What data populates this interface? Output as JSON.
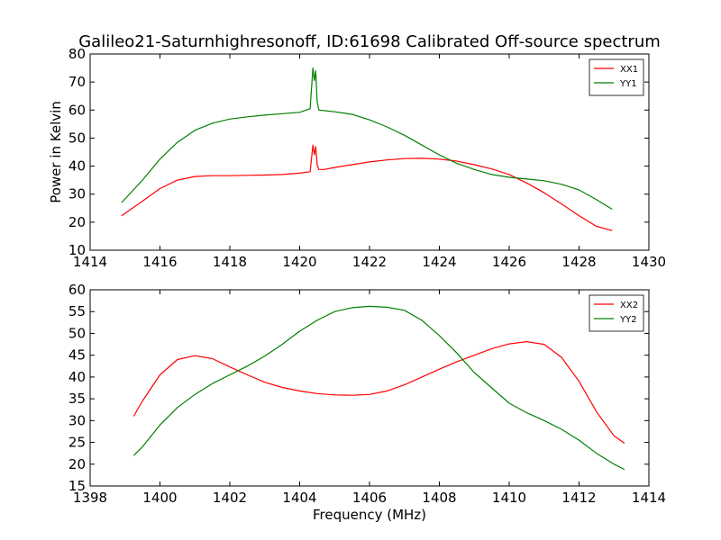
{
  "figure": {
    "title": "Galileo21-Saturnhighresonoff, ID:61698 Calibrated Off-source spectrum",
    "xlabel": "Frequency (MHz)",
    "ylabel": "Power in Kelvin"
  },
  "chart_data": [
    {
      "type": "line",
      "xlabel": "",
      "ylabel": "Power in Kelvin",
      "xlim": [
        1414,
        1430
      ],
      "ylim": [
        10,
        80
      ],
      "xticks": [
        "1414",
        "1416",
        "1418",
        "1420",
        "1422",
        "1424",
        "1426",
        "1428",
        "1430"
      ],
      "yticks": [
        "10",
        "20",
        "30",
        "40",
        "50",
        "60",
        "70",
        "80"
      ],
      "legend": "top-right",
      "series": [
        {
          "name": "XX1",
          "color": "#ff0000",
          "x": [
            1414.9,
            1415.5,
            1416.0,
            1416.5,
            1417.0,
            1417.5,
            1418.0,
            1418.5,
            1419.0,
            1419.5,
            1420.0,
            1420.3,
            1420.38,
            1420.42,
            1420.46,
            1420.5,
            1420.55,
            1420.7,
            1421.0,
            1421.5,
            1422.0,
            1422.5,
            1423.0,
            1423.5,
            1424.0,
            1424.5,
            1425.0,
            1425.5,
            1426.0,
            1426.5,
            1427.0,
            1427.5,
            1428.0,
            1428.5,
            1428.95
          ],
          "y": [
            22.3,
            27.5,
            32.0,
            35.0,
            36.3,
            36.6,
            36.6,
            36.7,
            36.8,
            37.0,
            37.5,
            38.0,
            47.5,
            44.0,
            47.0,
            40.5,
            38.8,
            38.8,
            39.5,
            40.5,
            41.5,
            42.2,
            42.7,
            42.8,
            42.5,
            41.8,
            40.5,
            39.0,
            37.0,
            34.0,
            30.5,
            26.5,
            22.3,
            18.5,
            17.0
          ]
        },
        {
          "name": "YY1",
          "color": "#008000",
          "x": [
            1414.9,
            1415.5,
            1416.0,
            1416.5,
            1417.0,
            1417.5,
            1418.0,
            1418.5,
            1419.0,
            1419.5,
            1420.0,
            1420.3,
            1420.38,
            1420.42,
            1420.46,
            1420.5,
            1420.55,
            1420.7,
            1421.0,
            1421.5,
            1422.0,
            1422.5,
            1423.0,
            1423.5,
            1424.0,
            1424.5,
            1425.0,
            1425.5,
            1426.0,
            1426.5,
            1427.0,
            1427.5,
            1428.0,
            1428.5,
            1428.95
          ],
          "y": [
            27.0,
            35.0,
            42.5,
            48.5,
            52.8,
            55.3,
            56.8,
            57.6,
            58.2,
            58.7,
            59.2,
            60.5,
            75.0,
            70.5,
            74.0,
            63.0,
            60.0,
            59.8,
            59.4,
            58.5,
            56.5,
            54.0,
            51.0,
            47.5,
            44.0,
            41.0,
            38.8,
            37.0,
            36.0,
            35.4,
            34.8,
            33.5,
            31.5,
            28.0,
            24.6
          ]
        }
      ]
    },
    {
      "type": "line",
      "xlabel": "Frequency (MHz)",
      "ylabel": "",
      "xlim": [
        1398,
        1414
      ],
      "ylim": [
        15,
        60
      ],
      "xticks": [
        "1398",
        "1400",
        "1402",
        "1404",
        "1406",
        "1408",
        "1410",
        "1412",
        "1414"
      ],
      "yticks": [
        "15",
        "20",
        "25",
        "30",
        "35",
        "40",
        "45",
        "50",
        "55",
        "60"
      ],
      "legend": "top-right",
      "series": [
        {
          "name": "XX2",
          "color": "#ff0000",
          "x": [
            1399.25,
            1399.5,
            1400.0,
            1400.5,
            1401.0,
            1401.5,
            1402.0,
            1402.5,
            1403.0,
            1403.5,
            1404.0,
            1404.5,
            1405.0,
            1405.5,
            1406.0,
            1406.5,
            1407.0,
            1407.5,
            1408.0,
            1408.5,
            1409.0,
            1409.5,
            1410.0,
            1410.5,
            1411.0,
            1411.5,
            1412.0,
            1412.5,
            1413.0,
            1413.3
          ],
          "y": [
            31.0,
            34.5,
            40.5,
            44.0,
            44.9,
            44.2,
            42.3,
            40.5,
            38.8,
            37.6,
            36.8,
            36.2,
            35.9,
            35.8,
            36.0,
            36.8,
            38.2,
            40.0,
            41.8,
            43.5,
            45.0,
            46.5,
            47.6,
            48.1,
            47.5,
            44.5,
            39.0,
            32.0,
            26.5,
            24.8
          ]
        },
        {
          "name": "YY2",
          "color": "#008000",
          "x": [
            1399.25,
            1399.5,
            1400.0,
            1400.5,
            1401.0,
            1401.5,
            1402.0,
            1402.5,
            1403.0,
            1403.5,
            1404.0,
            1404.5,
            1405.0,
            1405.5,
            1406.0,
            1406.5,
            1407.0,
            1407.5,
            1408.0,
            1408.5,
            1409.0,
            1409.5,
            1410.0,
            1410.5,
            1411.0,
            1411.5,
            1412.0,
            1412.5,
            1413.0,
            1413.3
          ],
          "y": [
            22.0,
            24.0,
            29.0,
            33.0,
            36.0,
            38.5,
            40.5,
            42.5,
            44.8,
            47.5,
            50.5,
            53.0,
            55.0,
            55.9,
            56.2,
            56.0,
            55.3,
            53.0,
            49.5,
            45.5,
            41.0,
            37.5,
            34.0,
            31.8,
            30.0,
            28.0,
            25.5,
            22.5,
            20.0,
            18.8
          ]
        }
      ]
    }
  ]
}
